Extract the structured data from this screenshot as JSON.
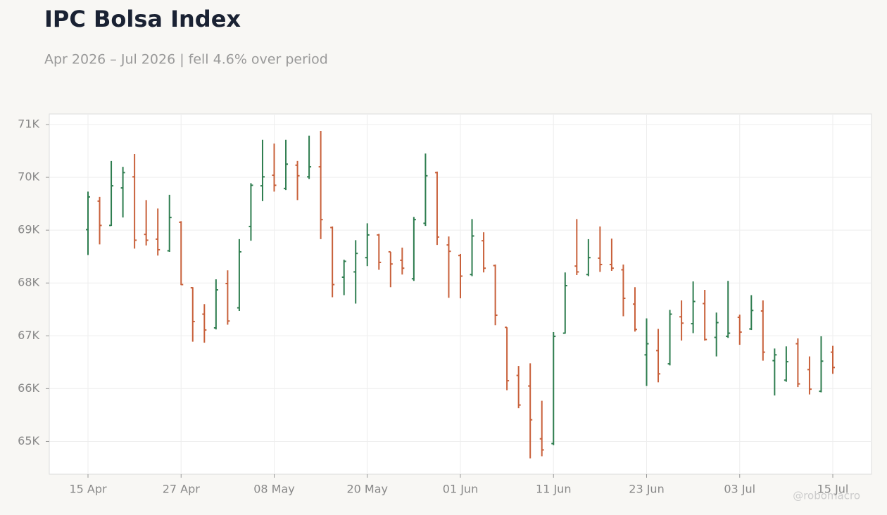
{
  "chart_data": {
    "type": "ohlc",
    "title": "IPC Bolsa Index",
    "subtitle": "Apr 2026 – Jul 2026 | fell 4.6% over period",
    "watermark": "@robomacro",
    "up_color": "#2e7d4f",
    "down_color": "#c8603a",
    "grid": true,
    "categories": [
      "15 Apr",
      null,
      null,
      null,
      null,
      null,
      null,
      null,
      "27 Apr",
      null,
      null,
      null,
      null,
      null,
      null,
      null,
      "08 May",
      null,
      null,
      null,
      null,
      null,
      null,
      null,
      "20 May",
      null,
      null,
      null,
      null,
      null,
      null,
      null,
      "01 Jun",
      null,
      null,
      null,
      null,
      null,
      null,
      null,
      "11 Jun",
      null,
      null,
      null,
      null,
      null,
      null,
      null,
      "23 Jun",
      null,
      null,
      null,
      null,
      null,
      null,
      null,
      "03 Jul",
      null,
      null,
      null,
      null,
      null,
      null,
      null,
      "15 Jul"
    ],
    "open": [
      69010,
      69550,
      69090,
      69800,
      70010,
      68920,
      68830,
      68610,
      69150,
      67910,
      67410,
      67150,
      67990,
      67530,
      69070,
      69840,
      70040,
      69790,
      70230,
      70010,
      70200,
      69050,
      68110,
      68210,
      68480,
      68910,
      68590,
      68430,
      68080,
      69130,
      70090,
      68720,
      68520,
      68160,
      68800,
      68330,
      67160,
      66250,
      66050,
      65050,
      64960,
      67050,
      68320,
      68160,
      68470,
      68350,
      68250,
      67600,
      66640,
      66720,
      66470,
      67360,
      67230,
      67610,
      66970,
      66990,
      67350,
      67130,
      67470,
      66530,
      66160,
      66850,
      66360,
      65950,
      66690
    ],
    "high": [
      69730,
      69630,
      70310,
      70200,
      70440,
      69570,
      69410,
      69670,
      69170,
      67920,
      67600,
      68070,
      68240,
      68830,
      69890,
      70710,
      70640,
      70710,
      70310,
      70790,
      70880,
      69070,
      68440,
      68810,
      69130,
      68930,
      68590,
      68670,
      69250,
      70450,
      70110,
      68880,
      68550,
      69210,
      68960,
      68350,
      67160,
      66430,
      66480,
      65770,
      67070,
      68200,
      69210,
      68830,
      69070,
      68840,
      68350,
      67920,
      67330,
      67130,
      67490,
      67670,
      68030,
      67870,
      67440,
      68040,
      67400,
      67770,
      67670,
      66760,
      66800,
      66950,
      66610,
      66990,
      66810
    ],
    "low": [
      68530,
      68730,
      69080,
      69240,
      68650,
      68710,
      68520,
      68590,
      67960,
      66890,
      66870,
      67120,
      67210,
      67470,
      68800,
      69550,
      69730,
      69760,
      69570,
      69970,
      68830,
      67730,
      67770,
      67610,
      68320,
      68250,
      67920,
      68160,
      68040,
      69080,
      68720,
      67720,
      67710,
      68130,
      68200,
      67200,
      65970,
      65630,
      64680,
      64720,
      64930,
      67040,
      68150,
      68130,
      68210,
      68230,
      67370,
      67080,
      66050,
      66120,
      66440,
      66910,
      67050,
      66910,
      66610,
      66960,
      66830,
      67110,
      66530,
      65870,
      66130,
      66030,
      65890,
      65930,
      66280
    ],
    "close": [
      69630,
      69090,
      69840,
      70090,
      68810,
      68810,
      68630,
      69240,
      67970,
      67270,
      67110,
      67870,
      67280,
      68590,
      69850,
      70010,
      69850,
      70250,
      70030,
      70200,
      69200,
      67970,
      68410,
      68560,
      68910,
      68390,
      68360,
      68280,
      69200,
      70030,
      68870,
      68600,
      68130,
      68890,
      68280,
      67390,
      66150,
      65690,
      65410,
      64840,
      66990,
      67950,
      68210,
      68480,
      68350,
      68280,
      67710,
      67120,
      66850,
      66280,
      67410,
      67240,
      67650,
      66930,
      67250,
      67050,
      67070,
      67480,
      66690,
      66640,
      66510,
      66090,
      65990,
      66520,
      66400
    ],
    "ylim": [
      64380,
      71200
    ],
    "yticks": [
      {
        "value": 65000,
        "label": "65K"
      },
      {
        "value": 66000,
        "label": "66K"
      },
      {
        "value": 67000,
        "label": "67K"
      },
      {
        "value": 68000,
        "label": "68K"
      },
      {
        "value": 69000,
        "label": "69K"
      },
      {
        "value": 70000,
        "label": "70K"
      },
      {
        "value": 71000,
        "label": "71K"
      }
    ]
  }
}
